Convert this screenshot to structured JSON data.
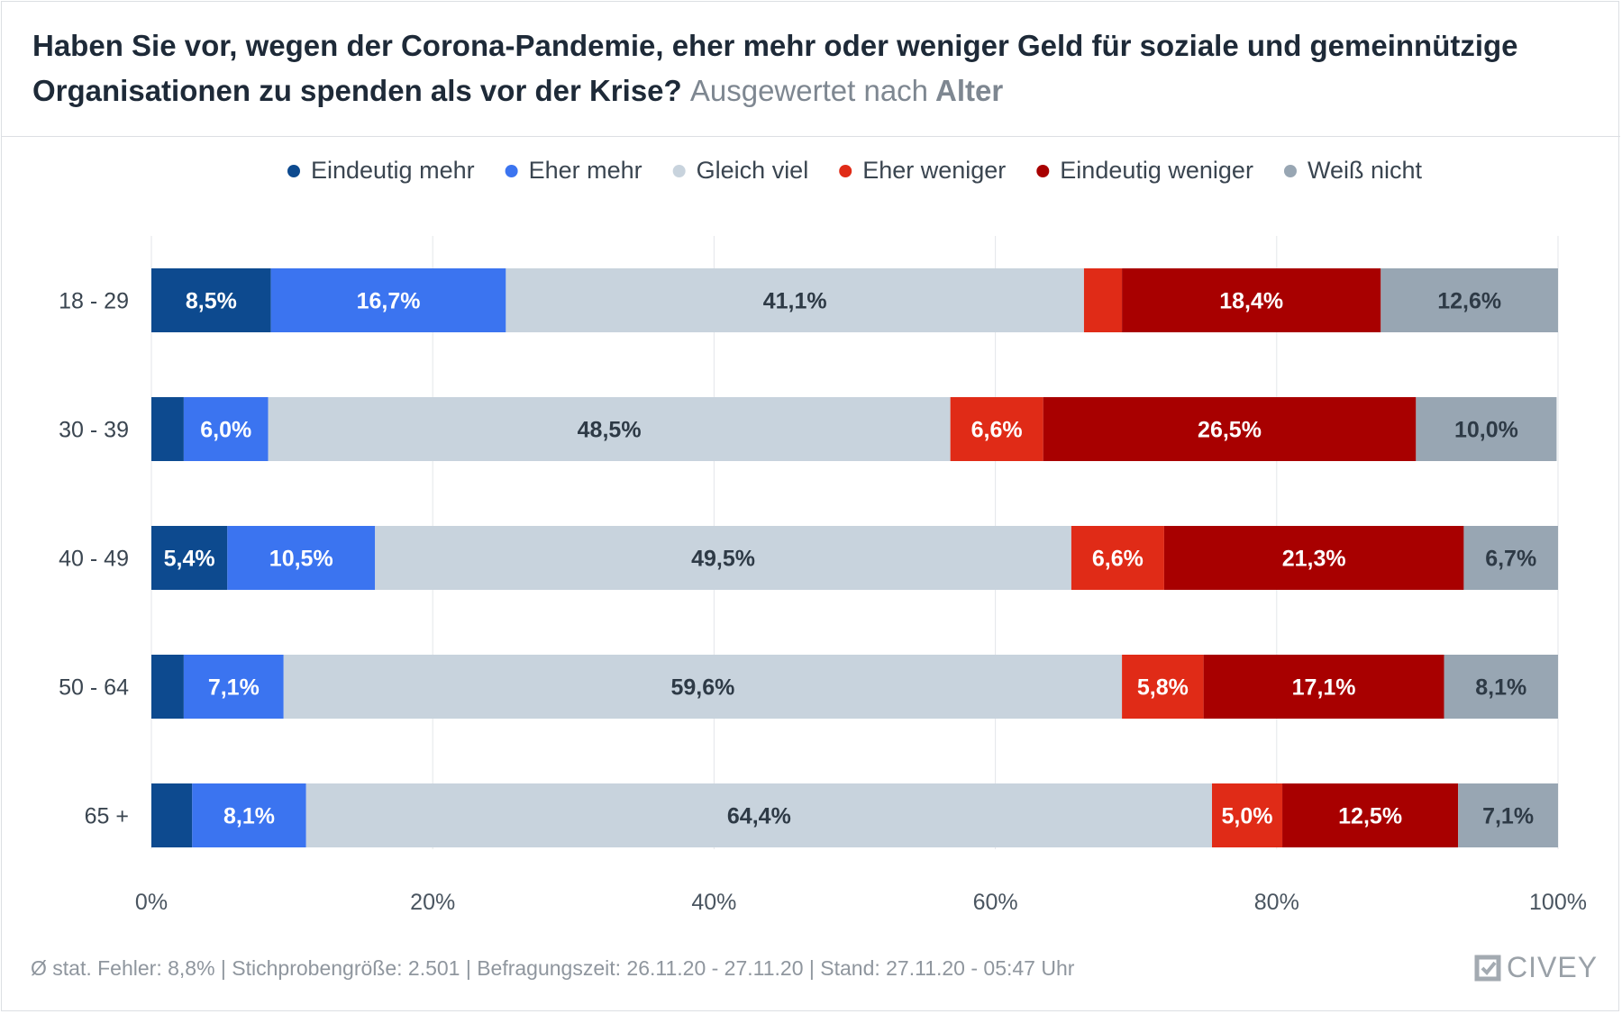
{
  "header": {
    "title": "Haben Sie vor, wegen der Corona-Pandemie, eher mehr oder weniger Geld für soziale und gemeinnützige Organisationen zu spenden als vor der Krise?",
    "subtitle_prefix": "Ausgewertet nach",
    "subtitle_bold": "Alter"
  },
  "chart_data": {
    "type": "bar",
    "orientation": "horizontal",
    "stacked": true,
    "categories": [
      "18 - 29",
      "30 - 39",
      "40 - 49",
      "50 - 64",
      "65 +"
    ],
    "series": [
      {
        "name": "Eindeutig mehr",
        "color": "#0d4a8f",
        "text_color": "#ffffff",
        "values": [
          8.5,
          2.3,
          5.4,
          2.3,
          2.9
        ],
        "labels": [
          "8,5%",
          "",
          "5,4%",
          "",
          ""
        ]
      },
      {
        "name": "Eher mehr",
        "color": "#3b74f0",
        "text_color": "#ffffff",
        "values": [
          16.7,
          6.0,
          10.5,
          7.1,
          8.1
        ],
        "labels": [
          "16,7%",
          "6,0%",
          "10,5%",
          "7,1%",
          "8,1%"
        ]
      },
      {
        "name": "Gleich viel",
        "color": "#c8d3dd",
        "text_color": "#2e3a46",
        "values": [
          41.1,
          48.5,
          49.5,
          59.6,
          64.4
        ],
        "labels": [
          "41,1%",
          "48,5%",
          "49,5%",
          "59,6%",
          "64,4%"
        ]
      },
      {
        "name": "Eher weniger",
        "color": "#e02b17",
        "text_color": "#ffffff",
        "values": [
          2.7,
          6.6,
          6.6,
          5.8,
          5.0
        ],
        "labels": [
          "",
          "6,6%",
          "6,6%",
          "5,8%",
          "5,0%"
        ]
      },
      {
        "name": "Eindeutig weniger",
        "color": "#a80000",
        "text_color": "#ffffff",
        "values": [
          18.4,
          26.5,
          21.3,
          17.1,
          12.5
        ],
        "labels": [
          "18,4%",
          "26,5%",
          "21,3%",
          "17,1%",
          "12,5%"
        ]
      },
      {
        "name": "Weiß nicht",
        "color": "#98a6b3",
        "text_color": "#2e3a46",
        "values": [
          12.6,
          10.0,
          6.7,
          8.1,
          7.1
        ],
        "labels": [
          "12,6%",
          "10,0%",
          "6,7%",
          "8,1%",
          "7,1%"
        ]
      }
    ],
    "xlim": [
      0,
      100
    ],
    "x_ticks": [
      "0%",
      "20%",
      "40%",
      "60%",
      "80%",
      "100%"
    ],
    "grid": true,
    "legend_position": "top"
  },
  "footer": {
    "note": "Ø stat. Fehler: 8,8% | Stichprobengröße: 2.501 | Befragungszeit: 26.11.20 - 27.11.20 | Stand: 27.11.20 - 05:47 Uhr",
    "logo_text": "CIVEY"
  }
}
